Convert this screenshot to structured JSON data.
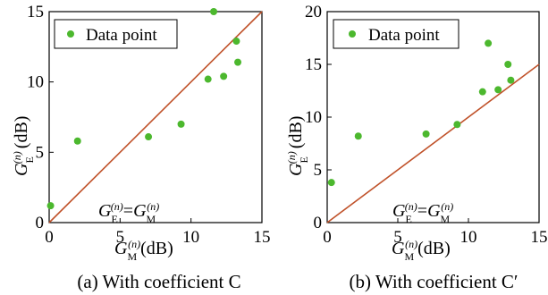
{
  "chart_data": [
    {
      "type": "scatter",
      "caption": "(a) With coefficient C",
      "xlabel": "G_M^(n) (dB)",
      "ylabel": "G_E^(n) (dB)",
      "xlim": [
        0,
        15
      ],
      "ylim": [
        0,
        15
      ],
      "xticks": [
        0,
        5,
        10,
        15
      ],
      "yticks": [
        0,
        5,
        10,
        15
      ],
      "legend": {
        "label": "Data point",
        "placement": "top-left"
      },
      "grid": false,
      "series": [
        {
          "name": "Data point",
          "color": "#4cb82e",
          "points": [
            {
              "x": 0.1,
              "y": 1.2
            },
            {
              "x": 2.0,
              "y": 5.8
            },
            {
              "x": 7.0,
              "y": 6.1
            },
            {
              "x": 9.3,
              "y": 7.0
            },
            {
              "x": 11.2,
              "y": 10.2
            },
            {
              "x": 11.6,
              "y": 15.0
            },
            {
              "x": 12.3,
              "y": 10.4
            },
            {
              "x": 13.2,
              "y": 12.9
            },
            {
              "x": 13.3,
              "y": 11.4
            }
          ]
        }
      ],
      "reference_line": {
        "from": [
          0,
          0
        ],
        "to": [
          15,
          15
        ],
        "color": "#c0522a",
        "label_lhs": "G_E^(n)",
        "label_eq": "=",
        "label_rhs": "G_M^(n)"
      }
    },
    {
      "type": "scatter",
      "caption": "(b) With coefficient C′",
      "xlabel": "G_M^(n) (dB)",
      "ylabel": "G_E^(n) (dB)",
      "xlim": [
        0,
        15
      ],
      "ylim": [
        0,
        20
      ],
      "xticks": [
        0,
        5,
        10,
        15
      ],
      "yticks": [
        0,
        5,
        10,
        15,
        20
      ],
      "legend": {
        "label": "Data point",
        "placement": "top-left"
      },
      "grid": false,
      "series": [
        {
          "name": "Data point",
          "color": "#4cb82e",
          "points": [
            {
              "x": 0.3,
              "y": 3.8
            },
            {
              "x": 2.2,
              "y": 8.2
            },
            {
              "x": 7.0,
              "y": 8.4
            },
            {
              "x": 9.2,
              "y": 9.3
            },
            {
              "x": 11.0,
              "y": 12.4
            },
            {
              "x": 11.4,
              "y": 17.0
            },
            {
              "x": 12.1,
              "y": 12.6
            },
            {
              "x": 12.8,
              "y": 15.0
            },
            {
              "x": 13.0,
              "y": 13.5
            }
          ]
        }
      ],
      "reference_line": {
        "from": [
          0,
          0
        ],
        "to": [
          15,
          15
        ],
        "color": "#c0522a",
        "label_lhs": "G_E^(n)",
        "label_eq": "=",
        "label_rhs": "G_M^(n)"
      }
    }
  ],
  "axis_text": {
    "g": "G",
    "sub_e": "E",
    "sub_m": "M",
    "sup_n": "(n)",
    "unit": "(dB)"
  }
}
